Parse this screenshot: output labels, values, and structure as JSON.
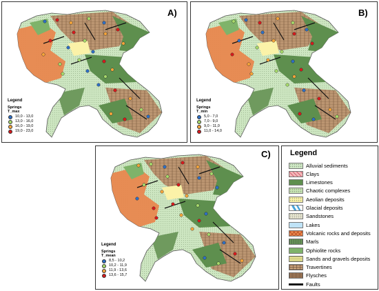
{
  "panels": [
    {
      "label": "A)",
      "legend_title": "Legend",
      "springs_title": "Springs",
      "variable": "T_max",
      "classes": [
        {
          "range": "10,0 - 13,0",
          "color": "#2e6fc4"
        },
        {
          "range": "13,0 - 16,0",
          "color": "#a6d96a"
        },
        {
          "range": "16,0 - 19,0",
          "color": "#f4a43a"
        },
        {
          "range": "19,0 - 23,0",
          "color": "#d7191c"
        }
      ]
    },
    {
      "label": "B)",
      "legend_title": "Legend",
      "springs_title": "Springs",
      "variable": "T_min",
      "classes": [
        {
          "range": "5,0 - 7,0",
          "color": "#2e6fc4"
        },
        {
          "range": "7,0 - 9,0",
          "color": "#a6d96a"
        },
        {
          "range": "9,0 - 11,0",
          "color": "#f4a43a"
        },
        {
          "range": "11,0 - 14,0",
          "color": "#d7191c"
        }
      ]
    },
    {
      "label": "C)",
      "legend_title": "Legend",
      "springs_title": "Springs",
      "variable": "T_mean",
      "classes": [
        {
          "range": "8,5 - 10,2",
          "color": "#2e6fc4"
        },
        {
          "range": "10,2 - 11,9",
          "color": "#a6d96a"
        },
        {
          "range": "11,9 - 13,6",
          "color": "#f4a43a"
        },
        {
          "range": "13,6 - 15,7",
          "color": "#d7191c"
        }
      ]
    }
  ],
  "legend": {
    "title": "Legend",
    "items": [
      {
        "label": "Alluvial sediments",
        "color": "#cfe8c6",
        "pattern": "dots"
      },
      {
        "label": "Clays",
        "color": "#f1b7b7",
        "pattern": "hatch"
      },
      {
        "label": "Limestones",
        "color": "#5e8f4e",
        "pattern": "none"
      },
      {
        "label": "Chaotic complexes",
        "color": "#c8e3b5",
        "pattern": "dots"
      },
      {
        "label": "Aeolian deposits",
        "color": "#fbf2a8",
        "pattern": "dots"
      },
      {
        "label": "Glacial deposits",
        "color": "#ffffff",
        "pattern": "glacial"
      },
      {
        "label": "Sandstones",
        "color": "#e8e5d2",
        "pattern": "dots"
      },
      {
        "label": "Lakes",
        "color": "#bfe3f7",
        "pattern": "none"
      },
      {
        "label": "Volcanic rocks and deposits",
        "color": "#e8874e",
        "pattern": "x"
      },
      {
        "label": "Marls",
        "color": "#6f9a5e",
        "pattern": "grid"
      },
      {
        "label": "Ophiolite rocks",
        "color": "#7fb36a",
        "pattern": "none"
      },
      {
        "label": "Sands and gravels deposits",
        "color": "#e9e39a",
        "pattern": "cross"
      },
      {
        "label": "Travertines",
        "color": "#c9a37d",
        "pattern": "brick"
      },
      {
        "label": "Flysches",
        "color": "#b38a66",
        "pattern": "lines"
      },
      {
        "label": "Faults",
        "color": "#111111",
        "pattern": "fault"
      }
    ]
  }
}
